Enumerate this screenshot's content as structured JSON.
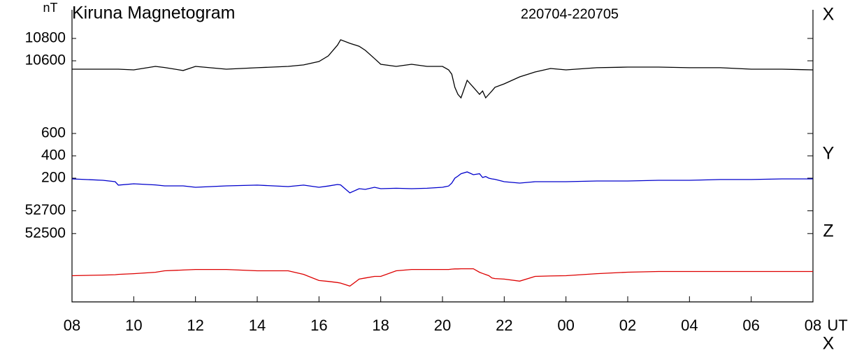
{
  "chart_data": {
    "type": "line",
    "title": "Kiruna Magnetogram",
    "subtitle": "220704-220705",
    "y_unit": "nT",
    "x_unit": "UT",
    "x_label": "X",
    "x": [
      0,
      1,
      1.4,
      1.5,
      2,
      2.7,
      3,
      3.6,
      4,
      5,
      6,
      7,
      7.5,
      8,
      8.3,
      8.6,
      8.7,
      9,
      9.3,
      9.5,
      9.8,
      10,
      10.5,
      11,
      11.5,
      12,
      12.2,
      12.3,
      12.4,
      12.5,
      12.6,
      12.8,
      13,
      13.2,
      13.3,
      13.4,
      13.5,
      13.6,
      13.7,
      14,
      14.5,
      15,
      15.5,
      16,
      17,
      18,
      19,
      20,
      21,
      22,
      23,
      24
    ],
    "xlim": [
      0,
      24
    ],
    "xticks": [
      {
        "value": 0,
        "label": "08"
      },
      {
        "value": 2,
        "label": "10"
      },
      {
        "value": 4,
        "label": "12"
      },
      {
        "value": 6,
        "label": "14"
      },
      {
        "value": 8,
        "label": "16"
      },
      {
        "value": 10,
        "label": "18"
      },
      {
        "value": 12,
        "label": "20"
      },
      {
        "value": 14,
        "label": "22"
      },
      {
        "value": 16,
        "label": "00"
      },
      {
        "value": 18,
        "label": "02"
      },
      {
        "value": 20,
        "label": "04"
      },
      {
        "value": 22,
        "label": "06"
      },
      {
        "value": 24,
        "label": "08"
      }
    ],
    "panels": [
      {
        "ylim": [
          10000,
          11000
        ],
        "yticks": [
          10600,
          10800
        ],
        "series": [
          {
            "name": "X",
            "color": "#000000",
            "values": [
              10525,
              10525,
              10525,
              10525,
              10519,
              10550,
              10540,
              10513,
              10550,
              10525,
              10538,
              10550,
              10563,
              10594,
              10644,
              10740,
              10788,
              10756,
              10730,
              10694,
              10620,
              10569,
              10550,
              10569,
              10550,
              10550,
              10519,
              10480,
              10363,
              10300,
              10269,
              10425,
              10363,
              10300,
              10330,
              10269,
              10300,
              10330,
              10363,
              10394,
              10456,
              10500,
              10531,
              10519,
              10538,
              10544,
              10544,
              10538,
              10538,
              10525,
              10525,
              10519
            ]
          }
        ]
      },
      {
        "ylim": [
          0,
          650
        ],
        "yticks": [
          200,
          400,
          600
        ],
        "series": [
          {
            "name": "Y",
            "color": "#0000cc",
            "values": [
              194,
              181,
              169,
              138,
              150,
              140,
              131,
              131,
              119,
              131,
              138,
              125,
              138,
              119,
              130,
              144,
              140,
              69,
              106,
              100,
              119,
              106,
              110,
              106,
              110,
              119,
              130,
              156,
              200,
              219,
              240,
              256,
              231,
              240,
              206,
              215,
              200,
              194,
              190,
              169,
              156,
              169,
              169,
              169,
              175,
              175,
              181,
              181,
              188,
              188,
              194,
              194
            ]
          }
        ]
      },
      {
        "ylim": [
          51900,
          52790
        ],
        "yticks": [
          52500,
          52700
        ],
        "series": [
          {
            "name": "Z",
            "color": "#dd0000",
            "values": [
              52130,
              52136,
              52139,
              52142,
              52148,
              52160,
              52173,
              52180,
              52185,
              52185,
              52173,
              52173,
              52142,
              52088,
              52080,
              52070,
              52065,
              52039,
              52100,
              52110,
              52124,
              52124,
              52173,
              52185,
              52185,
              52185,
              52185,
              52188,
              52190,
              52190,
              52191,
              52191,
              52191,
              52160,
              52150,
              52140,
              52130,
              52110,
              52105,
              52100,
              52082,
              52124,
              52128,
              52130,
              52148,
              52161,
              52167,
              52167,
              52167,
              52167,
              52167,
              52167
            ]
          }
        ]
      }
    ]
  }
}
